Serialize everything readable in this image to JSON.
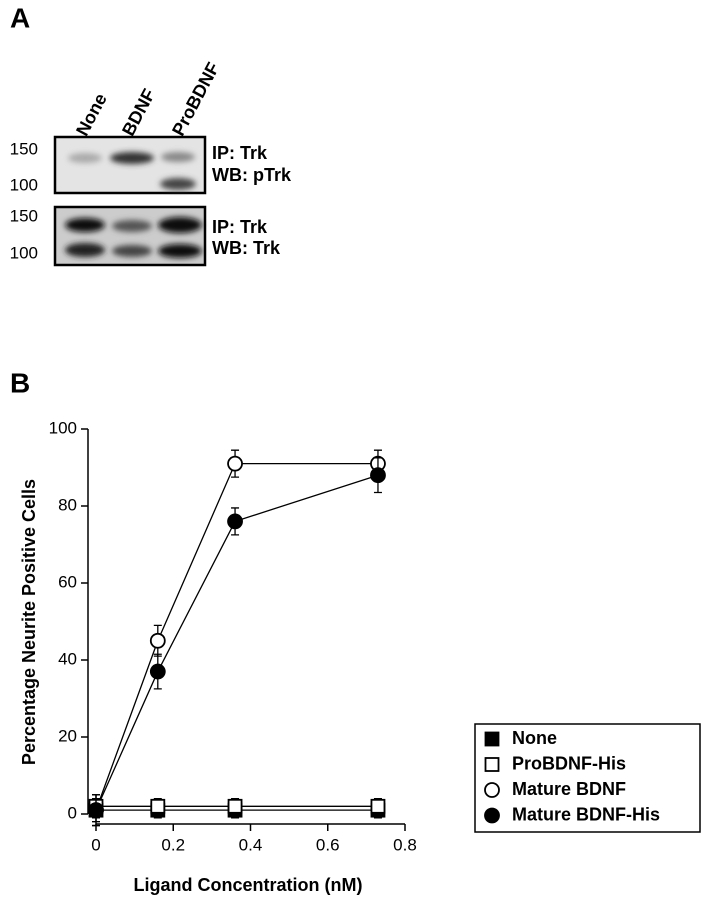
{
  "panel_a": {
    "label": "A",
    "lanes": [
      "None",
      "BDNF",
      "ProBDNF"
    ],
    "blots": [
      {
        "markers": [
          150,
          100
        ],
        "labels": [
          "IP: Trk",
          "WB: pTrk"
        ]
      },
      {
        "markers": [
          150,
          100
        ],
        "labels": [
          "IP: Trk",
          "WB: Trk"
        ]
      }
    ]
  },
  "chart_data": {
    "type": "line",
    "panel_label": "B",
    "x_label": "Ligand Concentration (nM)",
    "y_label": "Percentage Neurite Positive Cells",
    "x": [
      0,
      0.16,
      0.36,
      0.73
    ],
    "series": [
      {
        "name": "None",
        "color": "#000000",
        "marker": "square",
        "filled": true,
        "values": [
          1,
          1,
          1,
          1
        ],
        "errors": [
          3,
          2,
          2,
          2
        ]
      },
      {
        "name": "ProBDNF-His",
        "color": "#000000",
        "marker": "square",
        "filled": false,
        "values": [
          2,
          2,
          2,
          2
        ],
        "errors": [
          3,
          2,
          2,
          2
        ]
      },
      {
        "name": "Mature BDNF",
        "color": "#000000",
        "marker": "circle",
        "filled": false,
        "values": [
          1,
          45,
          91,
          91
        ],
        "errors": [
          4,
          4,
          3.5,
          3.5
        ]
      },
      {
        "name": "Mature BDNF-His",
        "color": "#000000",
        "marker": "circle",
        "filled": true,
        "values": [
          1,
          37,
          76,
          88
        ],
        "errors": [
          4,
          4.5,
          3.5,
          4.5
        ]
      }
    ],
    "xlim": [
      0,
      0.8
    ],
    "xticks": [
      0,
      0.2,
      0.4,
      0.6,
      0.8
    ],
    "ylim": [
      0,
      100
    ],
    "yticks": [
      0,
      20,
      40,
      60,
      80,
      100
    ]
  }
}
